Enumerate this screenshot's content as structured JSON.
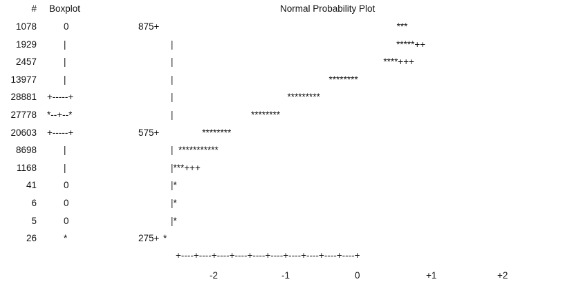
{
  "header": {
    "count_label": "#",
    "boxplot_label": "Boxplot",
    "title": "Normal Probability Plot"
  },
  "rows": [
    {
      "count": "1078",
      "box": "0",
      "ytick": "875+",
      "plot": "                                                                                          ***"
    },
    {
      "count": "1929",
      "box": "|",
      "ytick": "",
      "plot": "|                                                                                      *****++"
    },
    {
      "count": "2457",
      "box": "|",
      "ytick": "",
      "plot": "|                                                                                 ****+++"
    },
    {
      "count": "13977",
      "box": "|",
      "ytick": "",
      "plot": "|                                                            ********"
    },
    {
      "count": "28881",
      "box": "+-----+",
      "ytick": "",
      "plot": "|                                            *********"
    },
    {
      "count": "27778",
      "box": "*--+--*",
      "ytick": "",
      "plot": "|                              ********"
    },
    {
      "count": "20603",
      "box": "+-----+",
      "ytick": "575+",
      "plot": "               ********"
    },
    {
      "count": "8698",
      "box": "|",
      "ytick": "",
      "plot": "|  ***********"
    },
    {
      "count": "1168",
      "box": "|",
      "ytick": "",
      "plot": "|***+++"
    },
    {
      "count": "41",
      "box": "0",
      "ytick": "",
      "plot": "|*"
    },
    {
      "count": "6",
      "box": "0",
      "ytick": "",
      "plot": "|*"
    },
    {
      "count": "5",
      "box": "0",
      "ytick": "",
      "plot": "|*"
    },
    {
      "count": "26",
      "box": "*",
      "ytick": "275+",
      "plot": "*"
    }
  ],
  "xaxis": {
    "line": "+----+----+----+----+----+----+----+----+----+----+",
    "labels": [
      "-2",
      "-1",
      "0",
      "+1",
      "+2"
    ]
  }
}
